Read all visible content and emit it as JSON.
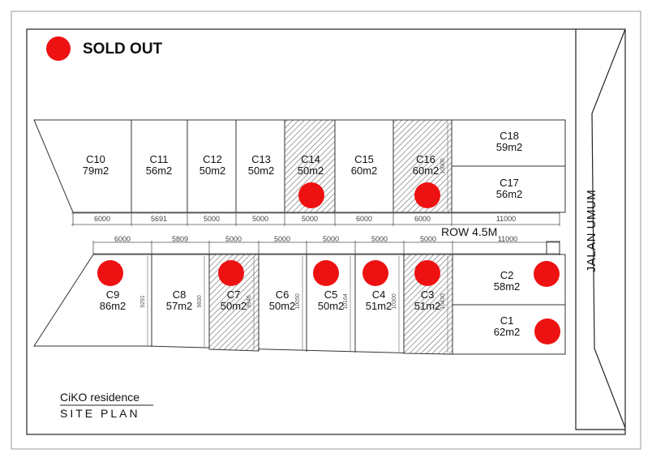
{
  "legend": {
    "label": "SOLD OUT",
    "marker_color": "#ee1111"
  },
  "row_label": "ROW 4.5M",
  "road_label": "JALAN UMUM",
  "project": {
    "name": "CiKO residence",
    "subtitle": "SITE PLAN"
  },
  "north_dimensions": [
    "6000",
    "5691",
    "5000",
    "5000",
    "5000",
    "6000",
    "6000",
    "11000"
  ],
  "south_dimensions": [
    "6000",
    "5809",
    "5000",
    "5000",
    "5000",
    "5000",
    "5000",
    "11000"
  ],
  "lots": [
    {
      "code": "C10",
      "area": "79m2",
      "sold": false,
      "hatched": false
    },
    {
      "code": "C11",
      "area": "56m2",
      "sold": false,
      "hatched": false
    },
    {
      "code": "C12",
      "area": "50m2",
      "sold": false,
      "hatched": false
    },
    {
      "code": "C13",
      "area": "50m2",
      "sold": false,
      "hatched": false
    },
    {
      "code": "C14",
      "area": "50m2",
      "sold": true,
      "hatched": true
    },
    {
      "code": "C15",
      "area": "60m2",
      "sold": false,
      "hatched": false
    },
    {
      "code": "C16",
      "area": "60m2",
      "sold": true,
      "hatched": true,
      "depth": "10000"
    },
    {
      "code": "C18",
      "area": "59m2",
      "sold": false,
      "hatched": false
    },
    {
      "code": "C17",
      "area": "56m2",
      "sold": false,
      "hatched": false
    },
    {
      "code": "C9",
      "area": "86m2",
      "sold": true,
      "hatched": false,
      "depth": "9291"
    },
    {
      "code": "C8",
      "area": "57m2",
      "sold": false,
      "hatched": false,
      "depth": "9830"
    },
    {
      "code": "C7",
      "area": "50m2",
      "sold": true,
      "hatched": true,
      "depth": "9946"
    },
    {
      "code": "C6",
      "area": "50m2",
      "sold": false,
      "hatched": false,
      "depth": "10050"
    },
    {
      "code": "C5",
      "area": "50m2",
      "sold": true,
      "hatched": false,
      "depth": "10164"
    },
    {
      "code": "C4",
      "area": "51m2",
      "sold": true,
      "hatched": false,
      "depth": "10300"
    },
    {
      "code": "C3",
      "area": "51m2",
      "sold": true,
      "hatched": true,
      "depth": "10420"
    },
    {
      "code": "C2",
      "area": "58m2",
      "sold": true,
      "hatched": false
    },
    {
      "code": "C1",
      "area": "62m2",
      "sold": true,
      "hatched": false
    }
  ]
}
